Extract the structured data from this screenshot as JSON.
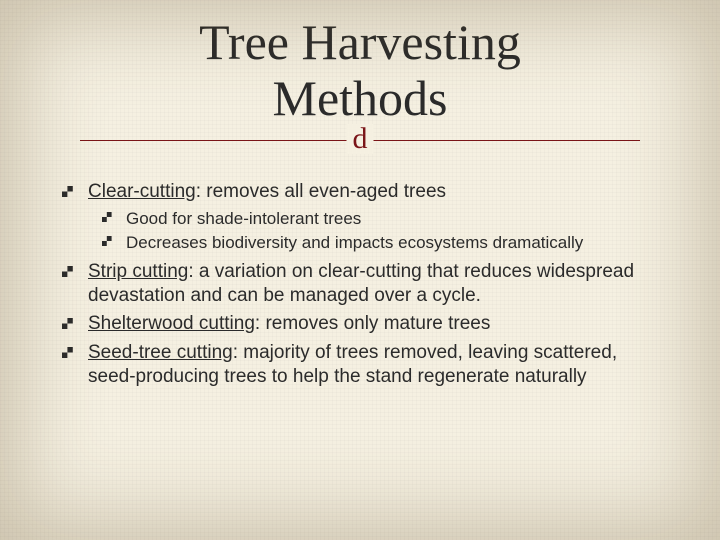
{
  "colors": {
    "background": "#f5f0e1",
    "text": "#2b2b2b",
    "accent": "#7a1518"
  },
  "typography": {
    "title_font": "Georgia, serif",
    "title_size_pt": 38,
    "body_font": "Arial, sans-serif",
    "body_size_pt": 14,
    "sub_size_pt": 13
  },
  "title": {
    "line1": "Tree Harvesting",
    "line2": "Methods"
  },
  "flourish_glyph": "d",
  "bullets": [
    {
      "term": "Clear-cutting",
      "rest": ": removes all even-aged trees",
      "sub": [
        "Good for shade-intolerant trees",
        "Decreases biodiversity and impacts ecosystems dramatically"
      ]
    },
    {
      "term": "Strip cutting",
      "rest": ": a variation on clear-cutting that reduces widespread devastation and can be managed over a cycle.",
      "sub": []
    },
    {
      "term": "Shelterwood cutting",
      "rest": ": removes only mature trees",
      "sub": []
    },
    {
      "term": "Seed-tree cutting",
      "rest": ": majority of trees removed, leaving scattered, seed-producing trees to help the stand regenerate naturally",
      "sub": []
    }
  ]
}
